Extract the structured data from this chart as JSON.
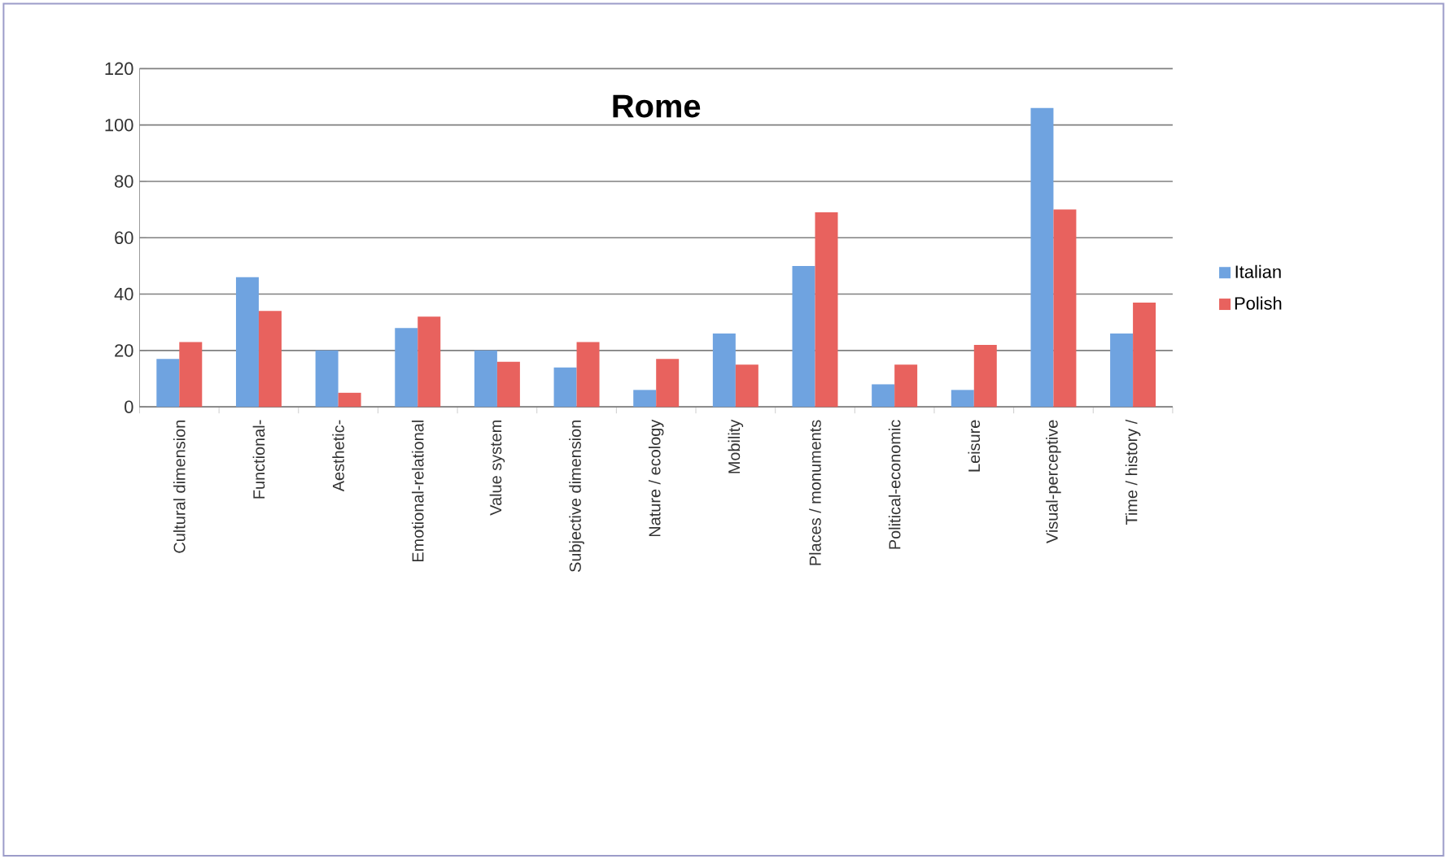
{
  "chart_data": {
    "type": "bar",
    "title": "Rome",
    "categories": [
      "Cultural dimension",
      "Functional-",
      "Aesthetic-",
      "Emotional-relational",
      "Value system",
      "Subjective dimension",
      "Nature / ecology",
      "Mobility",
      "Places / monuments",
      "Political-economic",
      "Leisure",
      "Visual-perceptive",
      "Time / history /"
    ],
    "series": [
      {
        "name": "Italian",
        "color": "#6fa3e0",
        "values": [
          17,
          46,
          20,
          28,
          20,
          14,
          6,
          26,
          50,
          8,
          6,
          106,
          26
        ]
      },
      {
        "name": "Polish",
        "color": "#e8625e",
        "values": [
          23,
          34,
          5,
          32,
          16,
          23,
          17,
          15,
          69,
          15,
          22,
          70,
          37
        ]
      }
    ],
    "ylim": [
      0,
      120
    ],
    "yticks": [
      0,
      20,
      40,
      60,
      80,
      100,
      120
    ],
    "grid": "y",
    "legend": "right"
  }
}
